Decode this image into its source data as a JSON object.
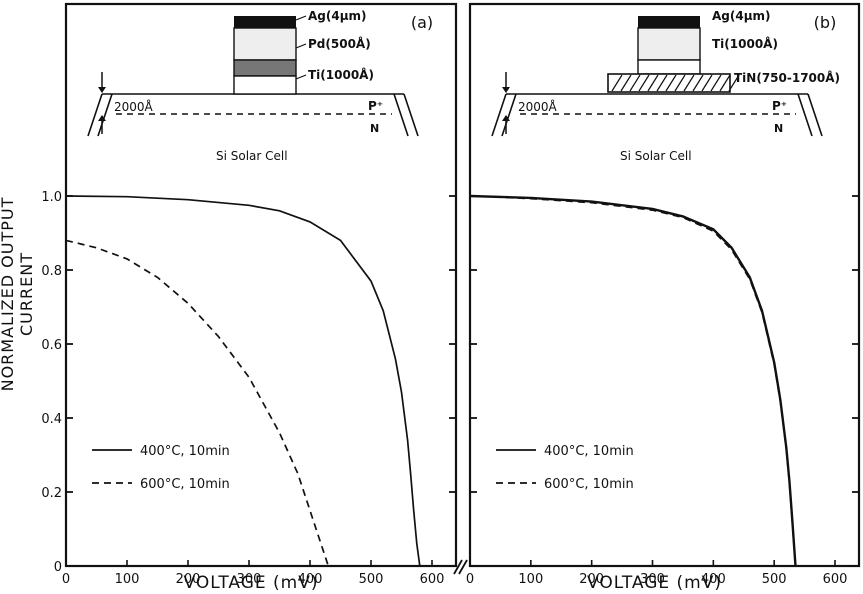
{
  "ylabel": "NORMALIZED OUTPUT CURRENT",
  "inset_caption": "Si Solar Cell",
  "chart_data": [
    {
      "type": "line",
      "panel_label": "(a)",
      "xlabel": "VOLTAGE (mV)",
      "ylabel": "NORMALIZED OUTPUT CURRENT",
      "xlim": [
        0,
        600
      ],
      "ylim": [
        0,
        1.0
      ],
      "xticks": [
        "0",
        "100",
        "200",
        "300",
        "400",
        "500",
        "600"
      ],
      "yticks": [
        "0",
        "0.2",
        "0.4",
        "0.6",
        "0.8",
        "1.0"
      ],
      "series": [
        {
          "name": "400°C, 10min",
          "style": "solid",
          "x": [
            0,
            100,
            200,
            300,
            350,
            400,
            450,
            500,
            520,
            540,
            550,
            560,
            565,
            570,
            575,
            580
          ],
          "y": [
            1.0,
            0.998,
            0.99,
            0.975,
            0.96,
            0.93,
            0.88,
            0.77,
            0.69,
            0.56,
            0.47,
            0.34,
            0.25,
            0.15,
            0.06,
            0.0
          ]
        },
        {
          "name": "600°C, 10min",
          "style": "dashed",
          "x": [
            0,
            50,
            100,
            150,
            200,
            250,
            300,
            350,
            380,
            400,
            410,
            420,
            430
          ],
          "y": [
            0.88,
            0.86,
            0.83,
            0.78,
            0.71,
            0.62,
            0.51,
            0.36,
            0.25,
            0.15,
            0.1,
            0.05,
            0.0
          ]
        }
      ],
      "inset_layers": [
        "Ag(4μm)",
        "Pd(500Å)",
        "Ti(1000Å)"
      ],
      "inset_depth": "2000Å",
      "inset_regions": [
        "P⁺",
        "N"
      ]
    },
    {
      "type": "line",
      "panel_label": "(b)",
      "xlabel": "VOLTAGE (mV)",
      "xlim": [
        0,
        600
      ],
      "ylim": [
        0,
        1.0
      ],
      "xticks": [
        "0",
        "100",
        "200",
        "300",
        "400",
        "500",
        "600"
      ],
      "series": [
        {
          "name": "400°C, 10min",
          "style": "solid",
          "x": [
            0,
            100,
            200,
            300,
            350,
            400,
            430,
            460,
            480,
            500,
            510,
            520,
            525,
            530,
            535
          ],
          "y": [
            1.0,
            0.995,
            0.985,
            0.965,
            0.945,
            0.91,
            0.86,
            0.78,
            0.69,
            0.55,
            0.45,
            0.32,
            0.23,
            0.12,
            0.0
          ]
        },
        {
          "name": "600°C, 10min",
          "style": "dashed",
          "x": [
            0,
            100,
            200,
            300,
            350,
            400,
            430,
            460,
            480,
            500,
            510,
            520,
            525,
            530,
            535
          ],
          "y": [
            1.0,
            0.993,
            0.982,
            0.962,
            0.942,
            0.905,
            0.855,
            0.775,
            0.685,
            0.545,
            0.445,
            0.315,
            0.225,
            0.115,
            0.0
          ]
        }
      ],
      "inset_layers": [
        "Ag(4μm)",
        "Ti(1000Å)",
        "TiN(750-1700Å)"
      ],
      "inset_depth": "2000Å",
      "inset_regions": [
        "P⁺",
        "N"
      ]
    }
  ]
}
